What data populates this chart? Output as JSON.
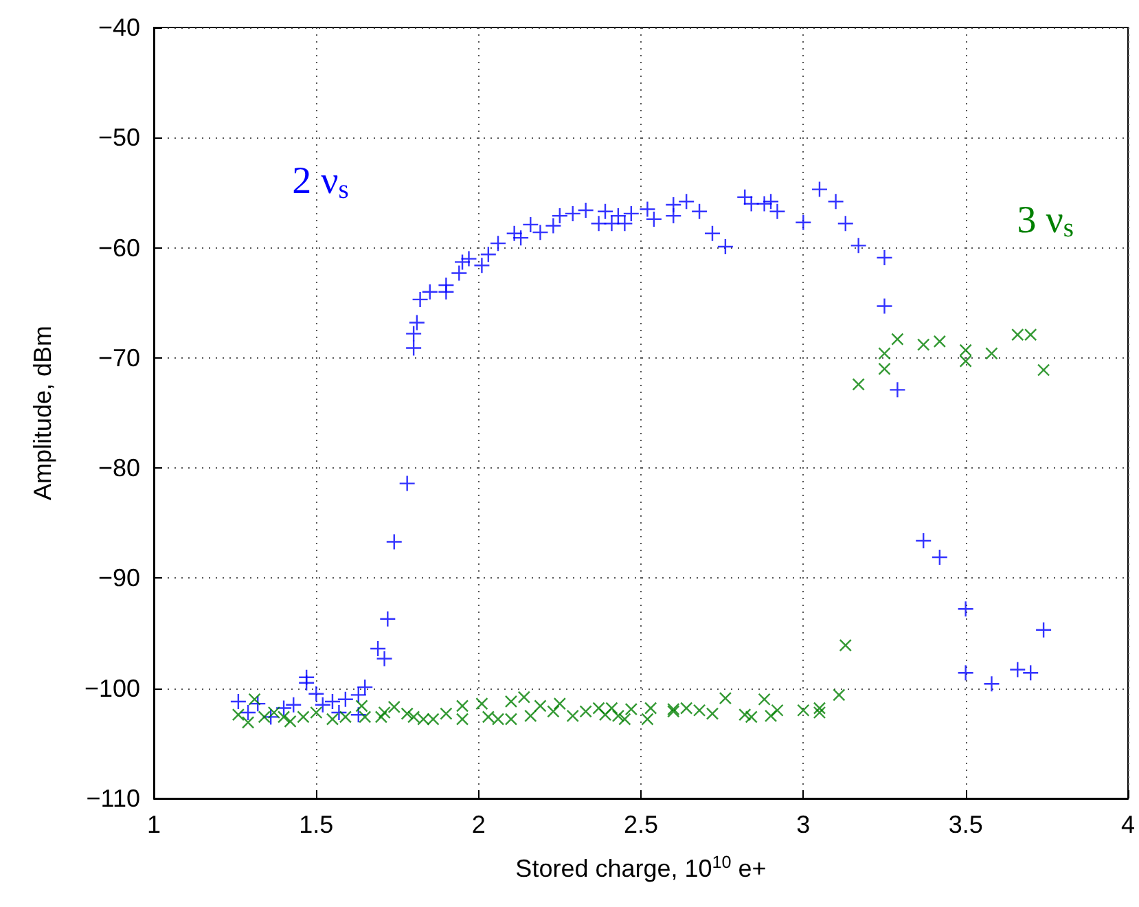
{
  "chart_data": {
    "type": "scatter",
    "xlabel": "Stored charge, 10$^{10}$ e+",
    "ylabel": "Amplitude, dBm",
    "xlim": [
      1,
      4
    ],
    "xticks": [
      1,
      1.5,
      2,
      2.5,
      3,
      3.5,
      4
    ],
    "ylim": [
      -110,
      -40
    ],
    "yticks": [
      {
        "value": -110,
        "label": "−110"
      },
      {
        "value": -100,
        "label": "−100"
      },
      {
        "value": -90,
        "label": "−90"
      },
      {
        "value": -80,
        "label": "−80"
      },
      {
        "value": -70,
        "label": "−70"
      },
      {
        "value": -60,
        "label": "−60"
      },
      {
        "value": -50,
        "label": "−50"
      },
      {
        "value": -40,
        "label": "−40"
      }
    ],
    "grid": true,
    "annotations": [
      "2 ν$_{s}$",
      "3 ν$_{s}$"
    ],
    "series": [
      {
        "color": "#0000ff",
        "marker": "cross",
        "x": [
          1.26,
          1.29,
          1.32,
          1.36,
          1.4,
          1.43,
          1.47,
          1.47,
          1.5,
          1.52,
          1.55,
          1.57,
          1.59,
          1.63,
          1.63,
          1.65,
          1.69,
          1.71,
          1.72,
          1.74,
          1.78,
          1.8,
          1.8,
          1.81,
          1.82,
          1.85,
          1.9,
          1.9,
          1.94,
          1.95,
          1.97,
          2.01,
          2.03,
          2.06,
          2.11,
          2.13,
          2.16,
          2.19,
          2.23,
          2.25,
          2.29,
          2.33,
          2.37,
          2.39,
          2.41,
          2.43,
          2.45,
          2.47,
          2.52,
          2.54,
          2.6,
          2.6,
          2.64,
          2.68,
          2.72,
          2.76,
          2.82,
          2.84,
          2.88,
          2.9,
          2.92,
          3.0,
          3.05,
          3.1,
          3.13,
          3.17,
          3.25,
          3.25,
          3.29,
          3.37,
          3.42,
          3.5,
          3.5,
          3.58,
          3.66,
          3.7,
          3.74
        ],
        "values": [
          -101.2,
          -102.2,
          -101.4,
          -102.6,
          -101.8,
          -101.5,
          -99,
          -99.5,
          -100.5,
          -101.5,
          -101.2,
          -102.2,
          -101,
          -100.6,
          -102.4,
          -99.9,
          -96.4,
          -97.3,
          -93.7,
          -86.7,
          -81.4,
          -69.1,
          -67.8,
          -66.8,
          -64.7,
          -64,
          -63.4,
          -64,
          -62.3,
          -61.3,
          -61,
          -61.6,
          -60.6,
          -59.6,
          -58.7,
          -59.1,
          -57.9,
          -58.6,
          -58,
          -57.1,
          -56.9,
          -56.6,
          -57.8,
          -56.7,
          -57.8,
          -57.1,
          -57.8,
          -56.9,
          -56.5,
          -57.4,
          -56.1,
          -57.1,
          -55.8,
          -56.7,
          -58.7,
          -59.9,
          -55.4,
          -56,
          -56,
          -55.8,
          -56.7,
          -57.7,
          -54.7,
          -55.8,
          -57.8,
          -59.8,
          -60.9,
          -65.3,
          -72.9,
          -86.6,
          -88.1,
          -92.8,
          -98.6,
          -99.6,
          -98.3,
          -98.6,
          -94.7
        ]
      },
      {
        "color": "#008000",
        "marker": "x",
        "x": [
          1.26,
          1.29,
          1.31,
          1.34,
          1.37,
          1.4,
          1.42,
          1.46,
          1.5,
          1.55,
          1.59,
          1.64,
          1.65,
          1.7,
          1.71,
          1.74,
          1.78,
          1.8,
          1.83,
          1.86,
          1.9,
          1.95,
          1.95,
          2.01,
          2.03,
          2.06,
          2.1,
          2.1,
          2.14,
          2.16,
          2.19,
          2.23,
          2.25,
          2.29,
          2.33,
          2.37,
          2.39,
          2.41,
          2.43,
          2.45,
          2.47,
          2.52,
          2.53,
          2.6,
          2.6,
          2.64,
          2.68,
          2.72,
          2.76,
          2.82,
          2.84,
          2.88,
          2.9,
          2.92,
          3.0,
          3.05,
          3.05,
          3.11,
          3.13,
          3.17,
          3.25,
          3.25,
          3.29,
          3.37,
          3.42,
          3.5,
          3.5,
          3.58,
          3.66,
          3.7,
          3.74
        ],
        "values": [
          -102.4,
          -103.1,
          -101,
          -102.6,
          -102.2,
          -102.6,
          -103,
          -102.6,
          -102.2,
          -102.8,
          -102.6,
          -101.6,
          -102.6,
          -102.6,
          -102.2,
          -101.7,
          -102.3,
          -102.6,
          -102.8,
          -102.8,
          -102.3,
          -101.6,
          -102.8,
          -101.4,
          -102.6,
          -102.8,
          -101.2,
          -102.8,
          -100.8,
          -102.5,
          -101.6,
          -102.1,
          -101.4,
          -102.5,
          -102.1,
          -101.8,
          -102.4,
          -101.8,
          -102.5,
          -102.8,
          -101.9,
          -102.8,
          -101.8,
          -101.9,
          -102.1,
          -101.8,
          -102,
          -102.3,
          -100.9,
          -102.4,
          -102.6,
          -101,
          -102.5,
          -102,
          -102,
          -101.8,
          -102.2,
          -100.6,
          -96.1,
          -72.4,
          -69.6,
          -71,
          -68.3,
          -68.8,
          -68.5,
          -69.3,
          -70.3,
          -69.6,
          -67.9,
          -67.9,
          -71.1
        ]
      }
    ]
  }
}
